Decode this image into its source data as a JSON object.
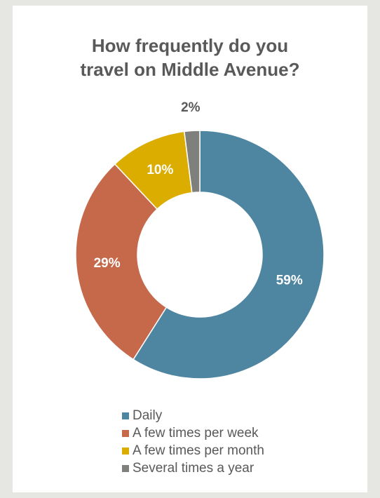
{
  "chart_data": {
    "type": "donut",
    "title_lines": [
      "How frequently do you",
      "travel on Middle Avenue?"
    ],
    "series": [
      {
        "name": "Daily",
        "value": 59,
        "label": "59%",
        "color": "#4e86a2"
      },
      {
        "name": "A few times per week",
        "value": 29,
        "label": "29%",
        "color": "#c6694b"
      },
      {
        "name": "A few times per month",
        "value": 10,
        "label": "10%",
        "color": "#dbad00"
      },
      {
        "name": "Several times a year",
        "value": 2,
        "label": "2%",
        "color": "#7f7f7b"
      }
    ],
    "legend_position": "bottom"
  }
}
